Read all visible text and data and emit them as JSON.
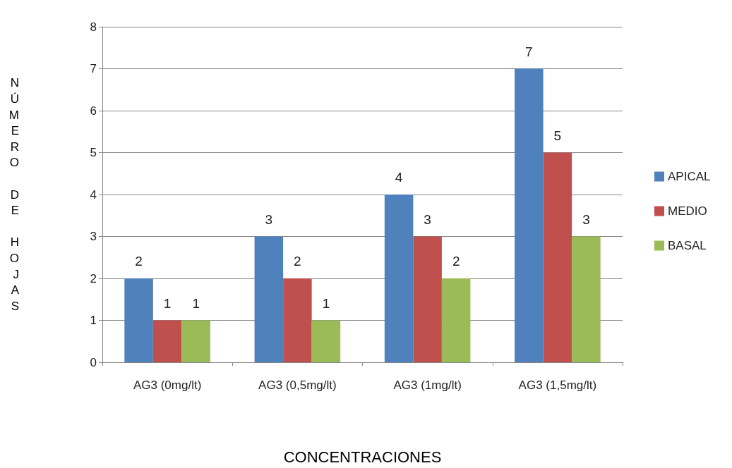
{
  "chart_data": {
    "type": "bar",
    "xlabel": "CONCENTRACIONES",
    "ylabel": "NÚMERO DE HOJAS",
    "categories": [
      "AG3 (0mg/lt)",
      "AG3 (0,5mg/lt)",
      "AG3 (1mg/lt)",
      "AG3 (1,5mg/lt)"
    ],
    "series": [
      {
        "name": "APICAL",
        "color": "#4f81bd",
        "values": [
          2,
          3,
          4,
          7
        ]
      },
      {
        "name": "MEDIO",
        "color": "#c0504d",
        "values": [
          1,
          2,
          3,
          5
        ]
      },
      {
        "name": "BASAL",
        "color": "#9bbb59",
        "values": [
          1,
          1,
          2,
          3
        ]
      }
    ],
    "ylim": [
      0,
      8
    ],
    "yticks": [
      0,
      1,
      2,
      3,
      4,
      5,
      6,
      7,
      8
    ],
    "grid": "y",
    "legend": "right",
    "data_labels": true
  }
}
